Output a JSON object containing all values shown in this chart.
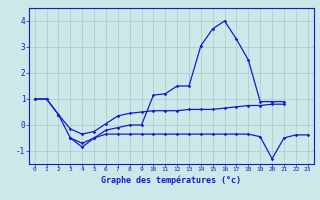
{
  "xlabel": "Graphe des températures (°c)",
  "background_color": "#cce8e8",
  "grid_color": "#aacfcf",
  "line_color": "#1a1acc",
  "x_values": [
    0,
    1,
    2,
    3,
    4,
    5,
    6,
    7,
    8,
    9,
    10,
    11,
    12,
    13,
    14,
    15,
    16,
    17,
    18,
    19,
    20,
    21,
    22,
    23
  ],
  "line1": [
    1.0,
    1.0,
    0.4,
    -0.5,
    -0.7,
    -0.5,
    -0.2,
    -0.1,
    0.0,
    0.0,
    1.15,
    1.2,
    1.5,
    1.5,
    3.05,
    3.7,
    4.0,
    3.3,
    2.5,
    0.9,
    0.9,
    0.9,
    null,
    null
  ],
  "line2": [
    1.0,
    1.0,
    0.4,
    -0.15,
    -0.35,
    -0.25,
    0.05,
    0.35,
    0.45,
    0.5,
    0.55,
    0.55,
    0.55,
    0.6,
    0.6,
    0.6,
    0.65,
    0.7,
    0.75,
    0.75,
    0.8,
    0.8,
    null,
    null
  ],
  "line3": [
    null,
    null,
    null,
    -0.5,
    -0.85,
    -0.5,
    -0.35,
    -0.35,
    -0.35,
    -0.35,
    -0.35,
    -0.35,
    -0.35,
    -0.35,
    -0.35,
    -0.35,
    -0.35,
    -0.35,
    -0.35,
    -0.45,
    -1.3,
    -0.5,
    -0.38,
    -0.38
  ],
  "xlim": [
    -0.5,
    23.5
  ],
  "ylim": [
    -1.5,
    4.5
  ],
  "yticks": [
    -1,
    0,
    1,
    2,
    3,
    4
  ],
  "xticks": [
    0,
    1,
    2,
    3,
    4,
    5,
    6,
    7,
    8,
    9,
    10,
    11,
    12,
    13,
    14,
    15,
    16,
    17,
    18,
    19,
    20,
    21,
    22,
    23
  ],
  "xtick_labels": [
    "0",
    "1",
    "2",
    "3",
    "4",
    "5",
    "6",
    "7",
    "8",
    "9",
    "10",
    "11",
    "12",
    "13",
    "14",
    "15",
    "16",
    "17",
    "18",
    "19",
    "20",
    "21",
    "22",
    "23"
  ]
}
